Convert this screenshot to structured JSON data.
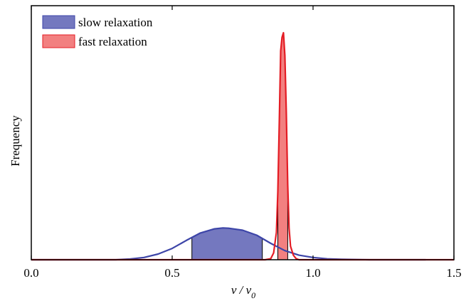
{
  "chart_data": {
    "type": "area",
    "title": "",
    "xlabel": "v / v",
    "xlabel_sub": "0",
    "ylabel": "Frequency",
    "xlim": [
      0,
      1.5
    ],
    "ylim": [
      0,
      1.0
    ],
    "xticks": [
      0.0,
      0.5,
      1.0,
      1.5
    ],
    "xtick_labels": [
      "0.0",
      "0.5",
      "1.0",
      "1.5"
    ],
    "grid": false,
    "legend_position": "top-left",
    "series": [
      {
        "name": "slow relaxation",
        "color": "#3d45a8",
        "fill": "#7478bf",
        "curve": {
          "x": [
            0.0,
            0.3,
            0.35,
            0.4,
            0.45,
            0.5,
            0.55,
            0.6,
            0.65,
            0.68,
            0.7,
            0.75,
            0.8,
            0.85,
            0.9,
            0.95,
            1.0,
            1.05,
            1.1,
            1.2,
            1.4
          ],
          "y": [
            0.0,
            0.0,
            0.003,
            0.01,
            0.025,
            0.05,
            0.085,
            0.118,
            0.136,
            0.14,
            0.139,
            0.13,
            0.108,
            0.072,
            0.04,
            0.02,
            0.01,
            0.004,
            0.002,
            0.0,
            0.0
          ]
        },
        "shaded_range": [
          0.57,
          0.82
        ]
      },
      {
        "name": "fast relaxation",
        "color": "#e41c24",
        "fill": "#f28080",
        "curve": {
          "x": [
            0.0,
            0.83,
            0.85,
            0.86,
            0.87,
            0.875,
            0.88,
            0.885,
            0.89,
            0.895,
            0.9,
            0.905,
            0.91,
            0.915,
            0.92,
            0.93,
            0.94,
            0.95,
            0.96,
            1.0,
            1.5
          ],
          "y": [
            0.0,
            0.0,
            0.005,
            0.03,
            0.12,
            0.3,
            0.6,
            0.92,
            0.98,
            1.0,
            0.9,
            0.65,
            0.33,
            0.14,
            0.06,
            0.02,
            0.005,
            0.0,
            0.0,
            0.0,
            0.0
          ]
        },
        "shaded_range": [
          0.875,
          0.91
        ]
      }
    ]
  }
}
